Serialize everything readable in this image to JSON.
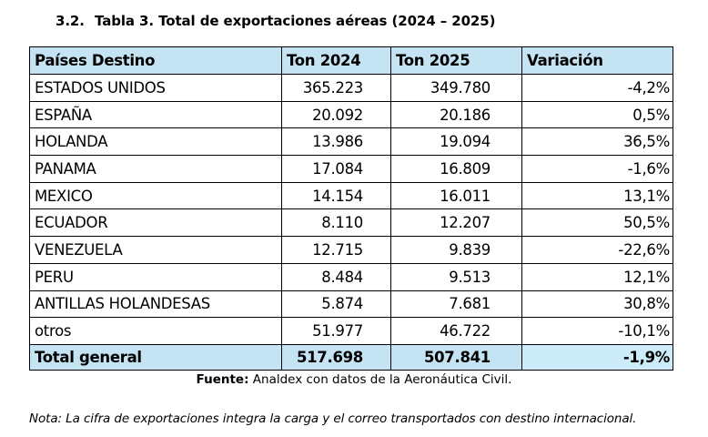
{
  "title": {
    "section_number": "3.2.",
    "text": "Tabla 3. Total de exportaciones aéreas (2024 – 2025)"
  },
  "table": {
    "headers": [
      "Países Destino",
      "Ton 2024",
      "Ton 2025",
      "Variación"
    ],
    "rows": [
      {
        "country": "ESTADOS UNIDOS",
        "ton_2024": "365.223",
        "ton_2025": "349.780",
        "variation": "-4,2%"
      },
      {
        "country": "ESPAÑA",
        "ton_2024": "20.092",
        "ton_2025": "20.186",
        "variation": "0,5%"
      },
      {
        "country": "HOLANDA",
        "ton_2024": "13.986",
        "ton_2025": "19.094",
        "variation": "36,5%"
      },
      {
        "country": "PANAMA",
        "ton_2024": "17.084",
        "ton_2025": "16.809",
        "variation": "-1,6%"
      },
      {
        "country": "MEXICO",
        "ton_2024": "14.154",
        "ton_2025": "16.011",
        "variation": "13,1%"
      },
      {
        "country": "ECUADOR",
        "ton_2024": "8.110",
        "ton_2025": "12.207",
        "variation": "50,5%"
      },
      {
        "country": "VENEZUELA",
        "ton_2024": "12.715",
        "ton_2025": "9.839",
        "variation": "-22,6%"
      },
      {
        "country": "PERU",
        "ton_2024": "8.484",
        "ton_2025": "9.513",
        "variation": "12,1%"
      },
      {
        "country": "ANTILLAS HOLANDESAS",
        "ton_2024": "5.874",
        "ton_2025": "7.681",
        "variation": "30,8%"
      },
      {
        "country": "otros",
        "ton_2024": "51.977",
        "ton_2025": "46.722",
        "variation": "-10,1%"
      }
    ],
    "total": {
      "label": "Total general",
      "ton_2024": "517.698",
      "ton_2025": "507.841",
      "variation": "-1,9%"
    }
  },
  "source": {
    "label": "Fuente:",
    "text": "Analdex con datos de la Aeronáutica Civil."
  },
  "note": "Nota: La cifra de exportaciones integra la carga y el correo transportados con destino internacional.",
  "colors": {
    "header_bg": "#c5e4f3",
    "total_bg": "#c5e4f3",
    "total_variation_bg": "#ccecfa",
    "border": "#000000"
  }
}
